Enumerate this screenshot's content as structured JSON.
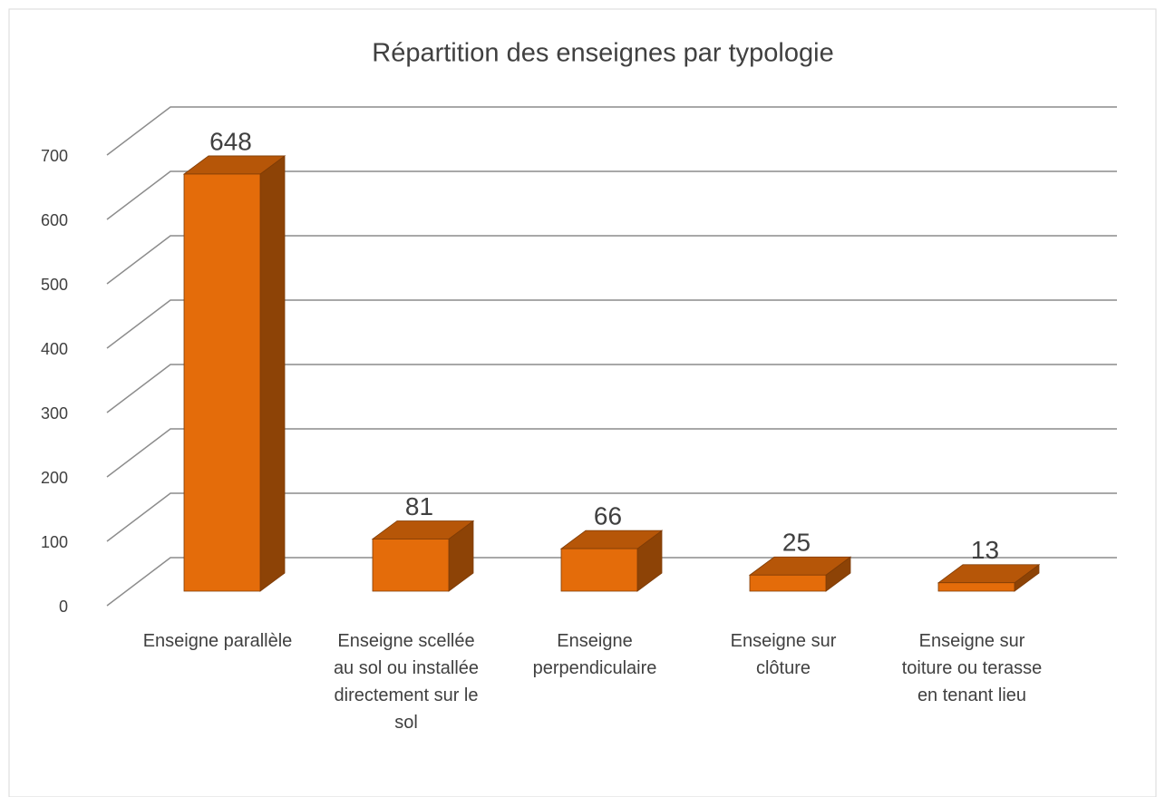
{
  "chart_data": {
    "type": "bar3d",
    "title": "Répartition des enseignes par typologie",
    "categories": [
      "Enseigne parallèle",
      "Enseigne scellée au sol ou installée directement sur le sol",
      "Enseigne perpendiculaire",
      "Enseigne sur clôture",
      "Enseigne sur toiture ou terasse en tenant lieu"
    ],
    "values": [
      648,
      81,
      66,
      25,
      13
    ],
    "color": "#e46c0a",
    "ylim": [
      0,
      700
    ],
    "yticks": [
      0,
      100,
      200,
      300,
      400,
      500,
      600,
      700
    ],
    "grid": true
  }
}
